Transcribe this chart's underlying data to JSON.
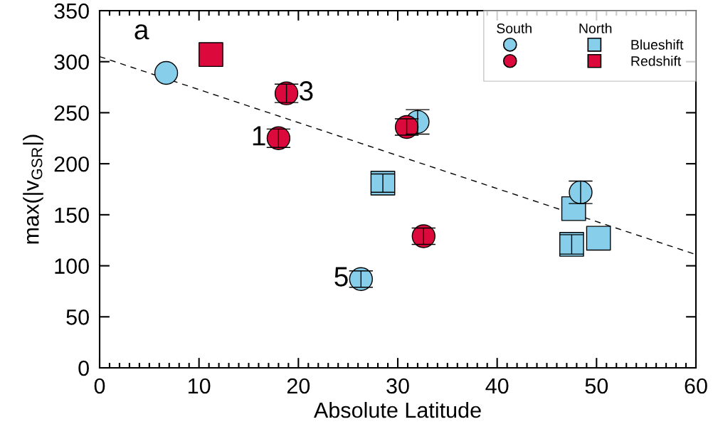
{
  "chart_data": {
    "type": "scatter",
    "xlabel": "Absolute Latitude",
    "ylabel": "max(|v$_{GSR}$|)",
    "xlim": [
      0,
      60
    ],
    "xticks": [
      0,
      10,
      20,
      30,
      40,
      50,
      60
    ],
    "ylim": [
      0,
      350
    ],
    "yticks": [
      0,
      50,
      100,
      150,
      200,
      250,
      300,
      350
    ],
    "grid": false,
    "legend": "top right",
    "legend_title": [
      "South",
      "North"
    ],
    "series": [
      {
        "name": "Blueshift",
        "color": "#87ceeb",
        "marker": "square",
        "x": [
          28.5,
          47.7,
          47.5,
          50.2
        ],
        "values": [
          181,
          156,
          121,
          127
        ],
        "errors": [
          9,
          null,
          9.5,
          null
        ]
      },
      {
        "name": "Redshift",
        "color": "#dc0a3c",
        "marker": "square",
        "x": [
          11.2
        ],
        "values": [
          307
        ],
        "errors": [
          null
        ]
      },
      {
        "color": "#87ceeb",
        "marker": "circle",
        "x": [
          6.7,
          32.0,
          26.3,
          48.4
        ],
        "values": [
          289,
          241,
          87,
          172
        ],
        "errors": [
          null,
          12,
          8,
          11
        ]
      },
      {
        "color": "#dc0a3c",
        "marker": "circle",
        "x": [
          18.8,
          18.0,
          30.9,
          32.6
        ],
        "values": [
          269,
          225,
          236,
          129
        ],
        "errors": [
          9,
          9,
          8,
          8
        ]
      },
      {
        "type": "line",
        "color": "#000000",
        "line_style": "dashed",
        "marker": "none",
        "x": [
          0,
          60
        ],
        "values": [
          305,
          111
        ]
      }
    ],
    "annotations": [
      "a",
      {
        "text": "1",
        "x": 18.0,
        "y": 225
      },
      {
        "text": "3",
        "x": 18.8,
        "y": 269
      },
      {
        "text": "5",
        "x": 26.3,
        "y": 87
      }
    ]
  }
}
